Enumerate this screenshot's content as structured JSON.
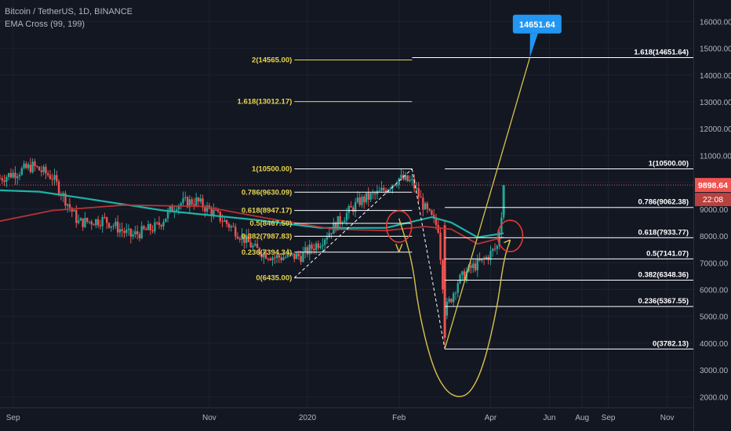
{
  "header": {
    "title": "Bitcoin / TetherUS, 1D, BINANCE",
    "indicator": "EMA Cross (99, 199)"
  },
  "colors": {
    "background": "#131722",
    "grid": "#1e2230",
    "text": "#b2b5be",
    "fib_left": "#e8d44d",
    "fib_right": "#ffffff",
    "ema_fast": "#1eb3a6",
    "ema_slow": "#b83234",
    "candle_up": "#26a69a",
    "candle_down": "#ef5350",
    "curve": "#d7c44a",
    "target_label_bg": "#2196f3",
    "price_label_bg": "#ef5350",
    "circle": "#e53935"
  },
  "chart_data": {
    "type": "candlestick",
    "y_axis": {
      "range": [
        1600,
        16800
      ],
      "ticks": [
        2000,
        3000,
        4000,
        5000,
        6000,
        7000,
        8000,
        9000,
        10000,
        11000,
        12000,
        13000,
        14000,
        15000,
        16000
      ],
      "tick_labels": [
        "2000.00",
        "3000.00",
        "4000.00",
        "5000.00",
        "6000.00",
        "7000.00",
        "8000.00",
        "9000.00",
        "10000.00",
        "11000.00",
        "12000.00",
        "13000.00",
        "14000.00",
        "15000.00",
        "16000.00"
      ]
    },
    "x_axis": {
      "range": [
        "2019-08-20",
        "2019-12-04"
      ],
      "ticks": [
        {
          "label": "Sep",
          "date": "2019-08-22"
        },
        {
          "label": "Nov",
          "date": "2019-09-21"
        },
        {
          "label": "2020",
          "date": "2019-10-06"
        },
        {
          "label": "Feb",
          "date": "2019-10-20"
        },
        {
          "label": "Apr",
          "date": "2019-11-03"
        },
        {
          "label": "Jun",
          "date": "2019-11-12"
        },
        {
          "label": "Aug",
          "date": "2019-11-17"
        },
        {
          "label": "Sep",
          "date": "2019-11-21"
        },
        {
          "label": "Nov",
          "date": "2019-11-30"
        }
      ]
    },
    "current_price": {
      "value": 9898.64,
      "label": "9898.64",
      "countdown": "22:08"
    },
    "target_label": {
      "value": 14651.64,
      "label": "14651.64"
    },
    "fib_left": [
      {
        "level": "2",
        "price": 14565.0,
        "label": "2(14565.00)"
      },
      {
        "level": "1.618",
        "price": 13012.17,
        "label": "1.618(13012.17)"
      },
      {
        "level": "1",
        "price": 10500.0,
        "label": "1(10500.00)"
      },
      {
        "level": "0.786",
        "price": 9630.09,
        "label": "0.786(9630.09)"
      },
      {
        "level": "0.618",
        "price": 8947.17,
        "label": "0.618(8947.17)"
      },
      {
        "level": "0.5",
        "price": 8467.5,
        "label": "0.5(8467.50)"
      },
      {
        "level": "0.382",
        "price": 7987.83,
        "label": "0.382(7987.83)"
      },
      {
        "level": "0.236",
        "price": 7394.34,
        "label": "0.236(7394.34)"
      },
      {
        "level": "0",
        "price": 6435.0,
        "label": "0(6435.00)"
      }
    ],
    "fib_right": [
      {
        "level": "1.618",
        "price": 14651.64,
        "label": "1.618(14651.64)"
      },
      {
        "level": "1",
        "price": 10500.0,
        "label": "1(10500.00)"
      },
      {
        "level": "0.786",
        "price": 9062.38,
        "label": "0.786(9062.38)"
      },
      {
        "level": "0.618",
        "price": 7933.77,
        "label": "0.618(7933.77)"
      },
      {
        "level": "0.5",
        "price": 7141.07,
        "label": "0.5(7141.07)"
      },
      {
        "level": "0.382",
        "price": 6348.36,
        "label": "0.382(6348.36)"
      },
      {
        "level": "0.236",
        "price": 5367.55,
        "label": "0.236(5367.55)"
      },
      {
        "level": "0",
        "price": 3782.13,
        "label": "0(3782.13)"
      }
    ],
    "key_points": [
      {
        "date": "2019-10-22",
        "price": 10500.0
      },
      {
        "date": "2019-10-27",
        "price": 3782.13
      },
      {
        "date": "2019-11-05",
        "price": 9898.64
      },
      {
        "date": "2019-11-09",
        "price": 14651.64
      }
    ],
    "ema_fast": [
      {
        "date": "2019-08-20",
        "price": 9700
      },
      {
        "date": "2019-08-26",
        "price": 9650
      },
      {
        "date": "2019-09-02",
        "price": 9400
      },
      {
        "date": "2019-09-14",
        "price": 8950
      },
      {
        "date": "2019-09-28",
        "price": 8600
      },
      {
        "date": "2019-10-08",
        "price": 8300
      },
      {
        "date": "2019-10-18",
        "price": 8300
      },
      {
        "date": "2019-10-25",
        "price": 8700
      },
      {
        "date": "2019-10-28",
        "price": 8500
      },
      {
        "date": "2019-11-01",
        "price": 7950
      },
      {
        "date": "2019-11-05",
        "price": 8100
      }
    ],
    "ema_slow": [
      {
        "date": "2019-08-20",
        "price": 8550
      },
      {
        "date": "2019-08-28",
        "price": 8950
      },
      {
        "date": "2019-09-08",
        "price": 9150
      },
      {
        "date": "2019-09-20",
        "price": 9100
      },
      {
        "date": "2019-09-30",
        "price": 8650
      },
      {
        "date": "2019-10-10",
        "price": 8250
      },
      {
        "date": "2019-10-18",
        "price": 8200
      },
      {
        "date": "2019-10-24",
        "price": 8350
      },
      {
        "date": "2019-10-28",
        "price": 8250
      },
      {
        "date": "2019-11-01",
        "price": 7700
      },
      {
        "date": "2019-11-05",
        "price": 7950
      }
    ],
    "parabola": [
      {
        "date": "2019-10-20",
        "price": 8650
      },
      {
        "date": "2019-10-22",
        "price": 7100
      },
      {
        "date": "2019-10-23",
        "price": 5200
      },
      {
        "date": "2019-10-25",
        "price": 3200
      },
      {
        "date": "2019-10-27",
        "price": 2250
      },
      {
        "date": "2019-10-29",
        "price": 1950
      },
      {
        "date": "2019-10-31",
        "price": 2150
      },
      {
        "date": "2019-11-02",
        "price": 3200
      },
      {
        "date": "2019-11-04",
        "price": 5300
      },
      {
        "date": "2019-11-05",
        "price": 7100
      },
      {
        "date": "2019-11-06",
        "price": 7850
      }
    ]
  }
}
